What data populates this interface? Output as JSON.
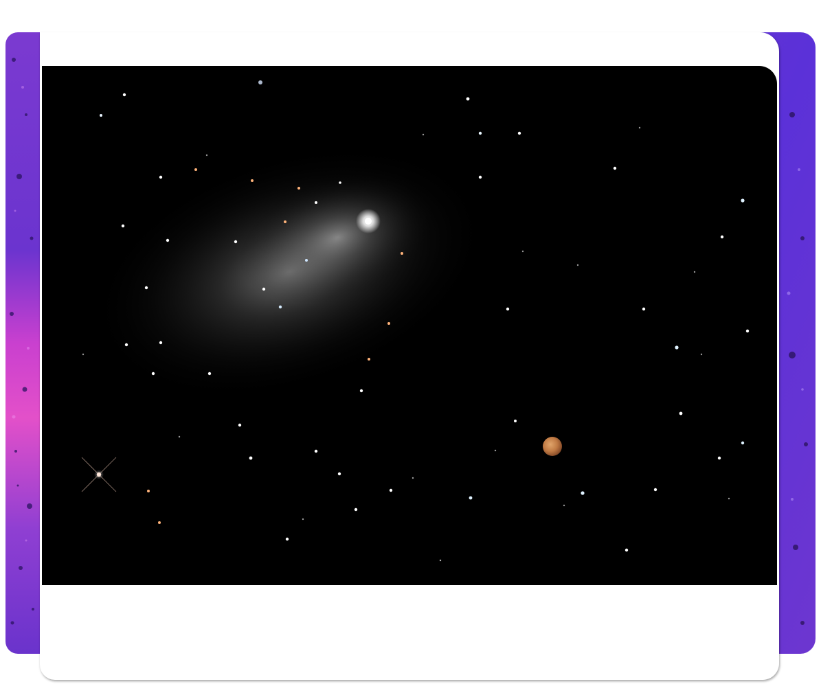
{
  "page": {
    "background_color": "#ffffff"
  },
  "backdrop": {
    "texture": "purple-paint-splatter",
    "colors": [
      "#7a36c8",
      "#5b2fd6",
      "#c13fd0",
      "#e04fc7",
      "#3b1a8a"
    ]
  },
  "card": {
    "background_color": "#ffffff",
    "caption_area": "empty"
  },
  "photo": {
    "subject": "comet-and-planet-in-starfield",
    "sky_color": "#000000",
    "comet_coma_color": "#d8d8d8",
    "planet_color": "#c9824a",
    "star_colors": [
      "#ffffff",
      "#d6ecff",
      "#ffb37a"
    ]
  }
}
